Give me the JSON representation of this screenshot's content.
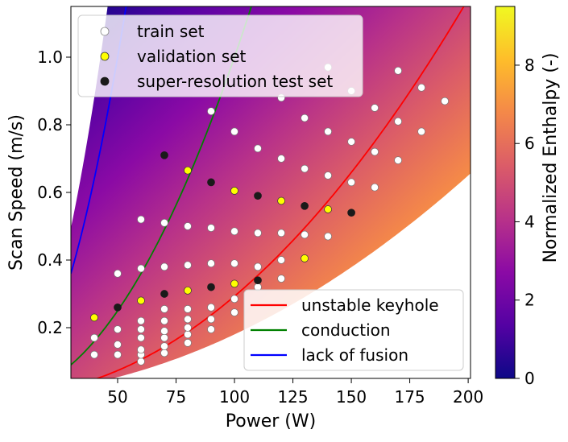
{
  "chart_data": {
    "type": "scatter",
    "xlabel": "Power (W)",
    "ylabel": "Scan Speed (m/s)",
    "xlim": [
      30,
      201
    ],
    "ylim": [
      0.05,
      1.15
    ],
    "xticks": [
      50,
      75,
      100,
      125,
      150,
      175,
      200
    ],
    "xtick_labels": [
      "50",
      "75",
      "100",
      "125",
      "150",
      "175",
      "200"
    ],
    "yticks": [
      0.2,
      0.4,
      0.6,
      0.8,
      1.0
    ],
    "ytick_labels": [
      "0.2",
      "0.4",
      "0.6",
      "0.8",
      "1.0"
    ],
    "colorbar": {
      "label": "Normalized Enthalpy (-)",
      "range": [
        0,
        9.5
      ],
      "ticks": [
        0,
        2,
        4,
        6,
        8
      ],
      "tick_labels": [
        "0",
        "2",
        "4",
        "6",
        "8"
      ],
      "colors": [
        "#0d0887",
        "#5402a3",
        "#8b0aa5",
        "#b83289",
        "#db5c68",
        "#f48849",
        "#febd2a",
        "#f0f921"
      ]
    },
    "scatter_legend": [
      {
        "key": "train",
        "label": "train set",
        "color": "#ffffff"
      },
      {
        "key": "validation",
        "label": "validation set",
        "color": "#ffff00"
      },
      {
        "key": "test",
        "label": "super-resolution test set",
        "color": "#1a1a1a"
      }
    ],
    "line_legend": [
      {
        "key": "keyhole",
        "label": "unstable keyhole",
        "color": "#ff0000"
      },
      {
        "key": "conduction",
        "label": "conduction",
        "color": "#008000"
      },
      {
        "key": "fusion",
        "label": "lack of fusion",
        "color": "#0000ff"
      }
    ],
    "boundary_coefficients": {
      "fusion": 0.0004,
      "conduction": 0.0001,
      "keyhole": 2.93e-05
    },
    "series": [
      {
        "name": "train set",
        "points": [
          [
            40,
            0.12
          ],
          [
            40,
            0.17
          ],
          [
            50,
            0.12
          ],
          [
            50,
            0.15
          ],
          [
            50,
            0.195
          ],
          [
            50,
            0.36
          ],
          [
            60,
            0.1
          ],
          [
            60,
            0.12
          ],
          [
            60,
            0.135
          ],
          [
            60,
            0.17
          ],
          [
            60,
            0.195
          ],
          [
            60,
            0.22
          ],
          [
            60,
            0.375
          ],
          [
            60,
            0.52
          ],
          [
            70,
            0.125
          ],
          [
            70,
            0.145
          ],
          [
            70,
            0.17
          ],
          [
            70,
            0.19
          ],
          [
            70,
            0.22
          ],
          [
            70,
            0.255
          ],
          [
            70,
            0.38
          ],
          [
            70,
            0.51
          ],
          [
            80,
            0.155
          ],
          [
            80,
            0.18
          ],
          [
            80,
            0.2
          ],
          [
            80,
            0.225
          ],
          [
            80,
            0.255
          ],
          [
            80,
            0.385
          ],
          [
            80,
            0.5
          ],
          [
            90,
            0.195
          ],
          [
            90,
            0.225
          ],
          [
            90,
            0.26
          ],
          [
            90,
            0.39
          ],
          [
            90,
            0.495
          ],
          [
            90,
            0.84
          ],
          [
            100,
            0.245
          ],
          [
            100,
            0.285
          ],
          [
            100,
            0.39
          ],
          [
            100,
            0.485
          ],
          [
            100,
            0.78
          ],
          [
            110,
            0.32
          ],
          [
            110,
            0.38
          ],
          [
            110,
            0.48
          ],
          [
            110,
            0.73
          ],
          [
            120,
            0.345
          ],
          [
            120,
            0.4
          ],
          [
            120,
            0.48
          ],
          [
            120,
            0.7
          ],
          [
            120,
            0.88
          ],
          [
            130,
            0.475
          ],
          [
            130,
            0.67
          ],
          [
            130,
            0.82
          ],
          [
            140,
            0.47
          ],
          [
            140,
            0.65
          ],
          [
            140,
            0.78
          ],
          [
            140,
            0.97
          ],
          [
            150,
            0.63
          ],
          [
            150,
            0.75
          ],
          [
            150,
            0.9
          ],
          [
            160,
            0.615
          ],
          [
            160,
            0.72
          ],
          [
            160,
            0.85
          ],
          [
            170,
            0.695
          ],
          [
            170,
            0.81
          ],
          [
            170,
            0.96
          ],
          [
            180,
            0.78
          ],
          [
            180,
            0.91
          ],
          [
            190,
            0.87
          ]
        ]
      },
      {
        "name": "validation set",
        "points": [
          [
            40,
            0.23
          ],
          [
            60,
            0.28
          ],
          [
            80,
            0.31
          ],
          [
            80,
            0.665
          ],
          [
            100,
            0.33
          ],
          [
            100,
            0.605
          ],
          [
            120,
            0.575
          ],
          [
            130,
            0.405
          ],
          [
            140,
            0.55
          ]
        ]
      },
      {
        "name": "super-resolution test set",
        "points": [
          [
            50,
            0.26
          ],
          [
            70,
            0.3
          ],
          [
            70,
            0.71
          ],
          [
            90,
            0.32
          ],
          [
            90,
            0.63
          ],
          [
            110,
            0.34
          ],
          [
            110,
            0.59
          ],
          [
            130,
            0.56
          ],
          [
            150,
            0.54
          ]
        ]
      }
    ]
  }
}
